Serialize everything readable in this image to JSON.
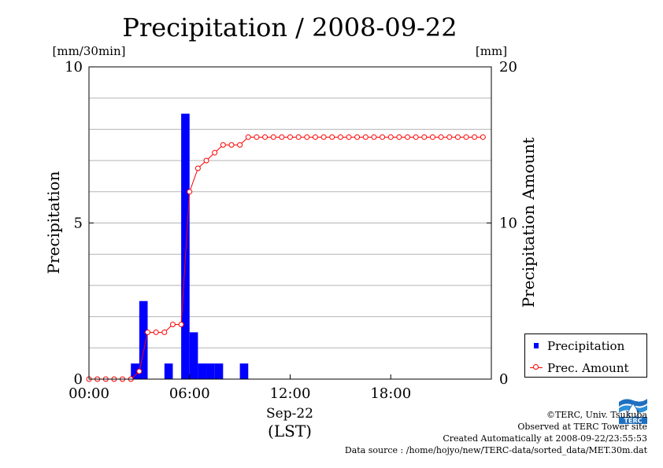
{
  "chart_data": {
    "type": "bar",
    "title": "Precipitation / 2008-09-22",
    "y_left": {
      "label": "Precipitation",
      "unit": "[mm/30min]",
      "ylim": [
        0,
        10
      ],
      "ticks": [
        "0",
        "5",
        "10"
      ]
    },
    "y_right": {
      "label": "Precipitation Amount",
      "unit": "[mm]",
      "ylim": [
        0,
        20
      ],
      "ticks": [
        "0",
        "10",
        "20"
      ]
    },
    "x_axis": {
      "xlim_hours": [
        0,
        24
      ],
      "tick_hours": [
        0,
        6,
        12,
        18
      ],
      "ticks": [
        "00:00",
        "06:00",
        "12:00",
        "18:00"
      ],
      "date_label": "Sep-22",
      "tz_label": "(LST)"
    },
    "grid": true,
    "series": [
      {
        "name": "Precipitation",
        "kind": "bar",
        "color": "#0000ff",
        "points": [
          {
            "time": "02:30",
            "value": 0.5
          },
          {
            "time": "03:00",
            "value": 2.5
          },
          {
            "time": "04:30",
            "value": 0.5
          },
          {
            "time": "05:30",
            "value": 8.5
          },
          {
            "time": "06:00",
            "value": 1.5
          },
          {
            "time": "06:30",
            "value": 0.5
          },
          {
            "time": "07:00",
            "value": 0.5
          },
          {
            "time": "07:30",
            "value": 0.5
          },
          {
            "time": "09:00",
            "value": 0.5
          }
        ]
      },
      {
        "name": "Prec. Amount",
        "kind": "line",
        "color": "#ff0000",
        "marker": "open-circle",
        "times": [
          "00:00",
          "00:30",
          "01:00",
          "01:30",
          "02:00",
          "02:30",
          "03:00",
          "03:30",
          "04:00",
          "04:30",
          "05:00",
          "05:30",
          "06:00",
          "06:30",
          "07:00",
          "07:30",
          "08:00",
          "08:30",
          "09:00",
          "09:30",
          "10:00",
          "10:30",
          "11:00",
          "11:30",
          "12:00",
          "12:30",
          "13:00",
          "13:30",
          "14:00",
          "14:30",
          "15:00",
          "15:30",
          "16:00",
          "16:30",
          "17:00",
          "17:30",
          "18:00",
          "18:30",
          "19:00",
          "19:30",
          "20:00",
          "20:30",
          "21:00",
          "21:30",
          "22:00",
          "22:30",
          "23:00",
          "23:30"
        ],
        "values": [
          0,
          0,
          0,
          0,
          0,
          0,
          0.5,
          3.0,
          3.0,
          3.0,
          3.5,
          3.5,
          12.0,
          13.5,
          14.0,
          14.5,
          15.0,
          15.0,
          15.0,
          15.5,
          15.5,
          15.5,
          15.5,
          15.5,
          15.5,
          15.5,
          15.5,
          15.5,
          15.5,
          15.5,
          15.5,
          15.5,
          15.5,
          15.5,
          15.5,
          15.5,
          15.5,
          15.5,
          15.5,
          15.5,
          15.5,
          15.5,
          15.5,
          15.5,
          15.5,
          15.5,
          15.5,
          15.5
        ]
      }
    ],
    "legend": {
      "placement": "bottom-right",
      "entries": [
        "Precipitation",
        "Prec. Amount"
      ]
    }
  },
  "credits": {
    "org": "©TERC, Univ. Tsukuba",
    "site": "Observed at TERC Tower site",
    "created": "Created Automatically at 2008-09-22/23:55:53",
    "source": "Data source : /home/hojyo/new/TERC-data/sorted_data/MET.30m.dat"
  },
  "logo": {
    "text": "TERC"
  }
}
